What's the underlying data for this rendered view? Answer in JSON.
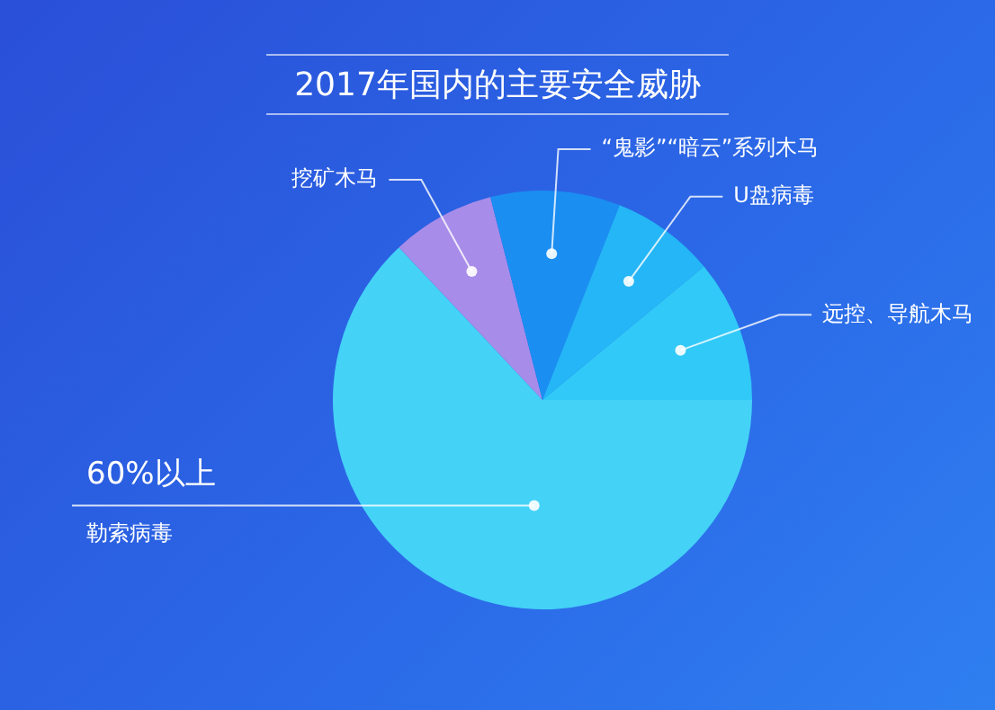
{
  "chart_data": {
    "type": "pie",
    "title": "2017年国内的主要安全威胁",
    "categories": [
      "勒索病毒",
      "挖矿木马",
      "“鬼影”“暗云”系列木马",
      "U盘病毒",
      "远控、导航木马"
    ],
    "values": [
      63,
      8,
      10,
      8,
      11
    ],
    "colors": [
      "#44d2f7",
      "#a88ce9",
      "#1b8ef2",
      "#24b6f6",
      "#31c9f8"
    ],
    "annotations": [
      "60%以上"
    ],
    "legend": false
  }
}
